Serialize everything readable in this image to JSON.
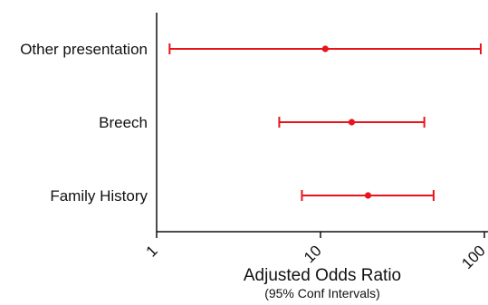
{
  "chart_data": {
    "type": "forest",
    "xscale": "log",
    "xlim": [
      1,
      100
    ],
    "xticks": [
      1,
      10,
      100
    ],
    "xtick_labels": [
      "1",
      "10",
      "100"
    ],
    "xlabel": "Adjusted Odds Ratio",
    "xlabel_sub": "(95% Conf Intervals)",
    "grid": false,
    "color": "#e8141c",
    "rows": [
      {
        "label": "Other presentation",
        "or": 10.7,
        "lower": 1.2,
        "upper": 95
      },
      {
        "label": "Breech",
        "or": 15.5,
        "lower": 5.6,
        "upper": 43
      },
      {
        "label": "Family History",
        "or": 19.5,
        "lower": 7.7,
        "upper": 49
      }
    ]
  }
}
